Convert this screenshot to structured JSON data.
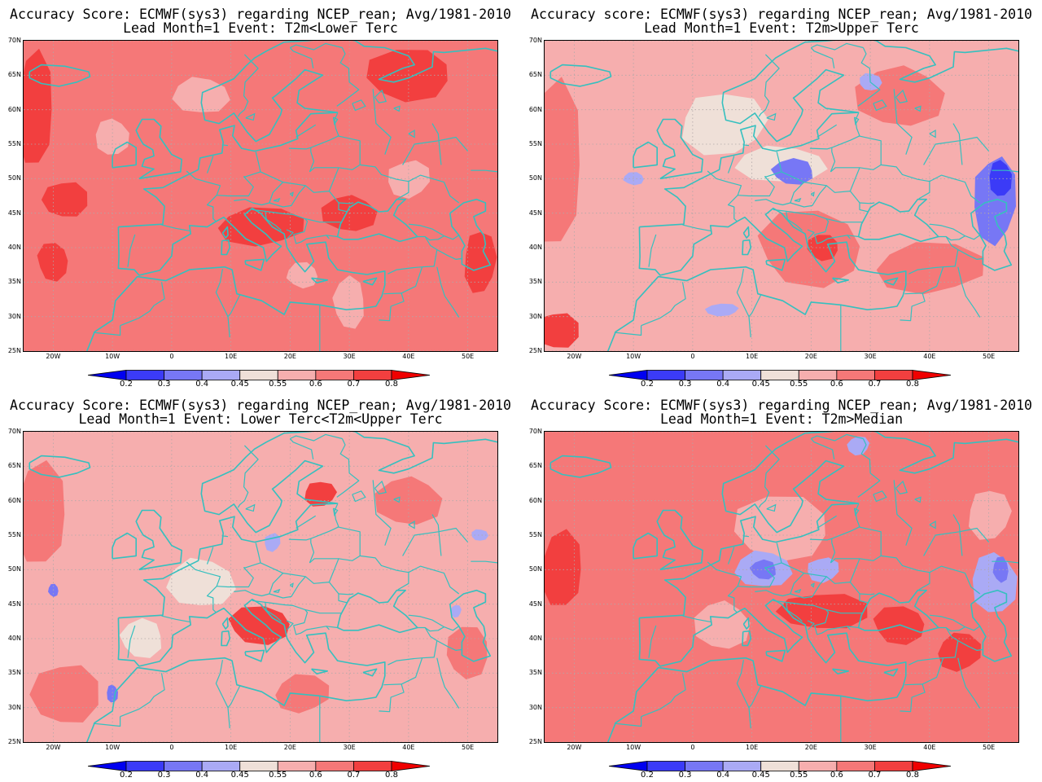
{
  "panels": [
    {
      "title_line1": "Accuracy Score: ECMWF(sys3) regarding NCEP_rean; Avg/1981-2010",
      "title_line2": "Lead Month=1 Event: T2m<Lower Terc",
      "base_level": 6,
      "patches": [
        {
          "lon": -23,
          "lat": 60,
          "rx": 3.5,
          "ry": 9,
          "level": 7
        },
        {
          "lon": -18,
          "lat": 47,
          "rx": 4,
          "ry": 3,
          "level": 7
        },
        {
          "lon": -20,
          "lat": 38,
          "rx": 3,
          "ry": 3,
          "level": 7
        },
        {
          "lon": 15,
          "lat": 43,
          "rx": 8,
          "ry": 3,
          "level": 7
        },
        {
          "lon": 30,
          "lat": 45,
          "rx": 5,
          "ry": 3,
          "level": 7
        },
        {
          "lon": 40,
          "lat": 65,
          "rx": 8,
          "ry": 4,
          "level": 7
        },
        {
          "lon": 52,
          "lat": 38,
          "rx": 3,
          "ry": 5,
          "level": 7
        },
        {
          "lon": 5,
          "lat": 62,
          "rx": 5,
          "ry": 3,
          "level": 5
        },
        {
          "lon": 30,
          "lat": 32,
          "rx": 3,
          "ry": 4,
          "level": 5
        },
        {
          "lon": 40,
          "lat": 50,
          "rx": 4,
          "ry": 3,
          "level": 5
        },
        {
          "lon": -10,
          "lat": 56,
          "rx": 3,
          "ry": 3,
          "level": 5
        },
        {
          "lon": 22,
          "lat": 36,
          "rx": 3,
          "ry": 2,
          "level": 5
        }
      ]
    },
    {
      "title_line1": "Accuracy score: ECMWF(sys3) regarding NCEP_rean; Avg/1981-2010",
      "title_line2": "Lead Month=1 Event: T2m>Upper Terc",
      "base_level": 5,
      "patches": [
        {
          "lon": -23,
          "lat": 52,
          "rx": 5,
          "ry": 13,
          "level": 6
        },
        {
          "lon": -23,
          "lat": 28,
          "rx": 4,
          "ry": 3,
          "level": 7
        },
        {
          "lon": 20,
          "lat": 40,
          "rx": 10,
          "ry": 6,
          "level": 6
        },
        {
          "lon": 40,
          "lat": 37,
          "rx": 10,
          "ry": 4,
          "level": 6
        },
        {
          "lon": 35,
          "lat": 62,
          "rx": 8,
          "ry": 5,
          "level": 6
        },
        {
          "lon": 22,
          "lat": 40,
          "rx": 3,
          "ry": 2,
          "level": 7
        },
        {
          "lon": 5,
          "lat": 58,
          "rx": 8,
          "ry": 5,
          "level": 4
        },
        {
          "lon": 15,
          "lat": 52,
          "rx": 8,
          "ry": 3,
          "level": 4
        },
        {
          "lon": 17,
          "lat": 51,
          "rx": 4,
          "ry": 2,
          "level": 2
        },
        {
          "lon": 51,
          "lat": 47,
          "rx": 4,
          "ry": 7,
          "level": 2
        },
        {
          "lon": 52,
          "lat": 50,
          "rx": 2,
          "ry": 3,
          "level": 1
        },
        {
          "lon": -10,
          "lat": 50,
          "rx": 2,
          "ry": 1,
          "level": 3
        },
        {
          "lon": 5,
          "lat": 31,
          "rx": 3,
          "ry": 1,
          "level": 3
        },
        {
          "lon": 30,
          "lat": 64,
          "rx": 2,
          "ry": 1.5,
          "level": 3
        }
      ]
    },
    {
      "title_line1": "Accuracy Score: ECMWF(sys3) regarding NCEP_rean; Avg/1981-2010",
      "title_line2": "Lead Month=1 Event: Lower Terc<T2m<Upper Terc",
      "base_level": 5,
      "patches": [
        {
          "lon": -22,
          "lat": 58,
          "rx": 5,
          "ry": 8,
          "level": 6
        },
        {
          "lon": -18,
          "lat": 32,
          "rx": 6,
          "ry": 5,
          "level": 6
        },
        {
          "lon": 15,
          "lat": 42,
          "rx": 6,
          "ry": 3,
          "level": 7
        },
        {
          "lon": 22,
          "lat": 32,
          "rx": 5,
          "ry": 3,
          "level": 6
        },
        {
          "lon": 40,
          "lat": 60,
          "rx": 6,
          "ry": 4,
          "level": 6
        },
        {
          "lon": 50,
          "lat": 38,
          "rx": 4,
          "ry": 4,
          "level": 6
        },
        {
          "lon": 25,
          "lat": 61,
          "rx": 3,
          "ry": 2,
          "level": 7
        },
        {
          "lon": 5,
          "lat": 48,
          "rx": 6,
          "ry": 4,
          "level": 4
        },
        {
          "lon": -5,
          "lat": 40,
          "rx": 4,
          "ry": 3,
          "level": 4
        },
        {
          "lon": 17,
          "lat": 54,
          "rx": 1.5,
          "ry": 1.5,
          "level": 3
        },
        {
          "lon": -10,
          "lat": 32,
          "rx": 1,
          "ry": 1.5,
          "level": 2
        },
        {
          "lon": -20,
          "lat": 47,
          "rx": 1,
          "ry": 1,
          "level": 2
        },
        {
          "lon": 48,
          "lat": 44,
          "rx": 1,
          "ry": 1,
          "level": 3
        },
        {
          "lon": 52,
          "lat": 55,
          "rx": 1.5,
          "ry": 1,
          "level": 3
        }
      ]
    },
    {
      "title_line1": "Accuracy Score: ECMWF(sys3) regarding NCEP_rean; Avg/1981-2010",
      "title_line2": "Lead Month=1 Event: T2m>Median",
      "base_level": 6,
      "patches": [
        {
          "lon": -22,
          "lat": 50,
          "rx": 4,
          "ry": 6,
          "level": 7
        },
        {
          "lon": 22,
          "lat": 44,
          "rx": 8,
          "ry": 3,
          "level": 7
        },
        {
          "lon": 35,
          "lat": 42,
          "rx": 5,
          "ry": 3,
          "level": 7
        },
        {
          "lon": 45,
          "lat": 38,
          "rx": 4,
          "ry": 3,
          "level": 7
        },
        {
          "lon": 5,
          "lat": 42,
          "rx": 5,
          "ry": 4,
          "level": 5
        },
        {
          "lon": 15,
          "lat": 56,
          "rx": 9,
          "ry": 5,
          "level": 5
        },
        {
          "lon": 50,
          "lat": 58,
          "rx": 4,
          "ry": 4,
          "level": 5
        },
        {
          "lon": 12,
          "lat": 50,
          "rx": 5,
          "ry": 3,
          "level": 3
        },
        {
          "lon": 12,
          "lat": 50,
          "rx": 2.5,
          "ry": 1.5,
          "level": 2
        },
        {
          "lon": 22,
          "lat": 50,
          "rx": 3,
          "ry": 2,
          "level": 3
        },
        {
          "lon": 51,
          "lat": 48,
          "rx": 4,
          "ry": 5,
          "level": 3
        },
        {
          "lon": 52,
          "lat": 50,
          "rx": 1.5,
          "ry": 2,
          "level": 2
        },
        {
          "lon": 28,
          "lat": 68,
          "rx": 2,
          "ry": 1.5,
          "level": 3
        }
      ]
    }
  ],
  "map": {
    "lon_range": [
      -25,
      55
    ],
    "lat_range": [
      25,
      70
    ],
    "lat_labels": [
      "25N",
      "30N",
      "35N",
      "40N",
      "45N",
      "50N",
      "55N",
      "60N",
      "65N",
      "70N"
    ],
    "lat_values": [
      25,
      30,
      35,
      40,
      45,
      50,
      55,
      60,
      65,
      70
    ],
    "lon_labels": [
      "20W",
      "10W",
      "0",
      "10E",
      "20E",
      "30E",
      "40E",
      "50E"
    ],
    "lon_values": [
      -20,
      -10,
      0,
      10,
      20,
      30,
      40,
      50
    ],
    "gridlines": "dotted",
    "coastline_color": "#35c0bf"
  },
  "colorbar": {
    "labels": [
      "0.2",
      "0.3",
      "0.4",
      "0.45",
      "0.55",
      "0.6",
      "0.7",
      "0.8"
    ],
    "colors": [
      "#0000f0",
      "#3b3bf7",
      "#7777f5",
      "#aaaaf5",
      "#efe0d8",
      "#f6aeae",
      "#f57878",
      "#f23f3f",
      "#f00000"
    ]
  }
}
